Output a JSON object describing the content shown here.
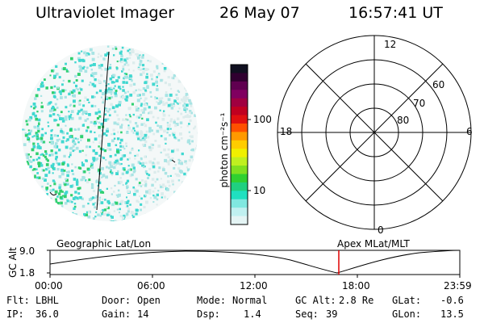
{
  "header": {
    "instrument": "Ultraviolet Imager",
    "date": "26 May 07",
    "time": "16:57:41 UT"
  },
  "colorbar": {
    "label": "photon cm⁻²s⁻¹",
    "ticks": [
      "100",
      "10"
    ],
    "colors": [
      "#101020",
      "#300030",
      "#600050",
      "#800060",
      "#a00040",
      "#c00020",
      "#e01010",
      "#ff5000",
      "#ff9900",
      "#ffcc00",
      "#f0f000",
      "#c0f020",
      "#80e020",
      "#30d030",
      "#20d080",
      "#20e0c0",
      "#80e8e0",
      "#c0f0f0",
      "#e4f4f4"
    ]
  },
  "polar": {
    "labels": {
      "top": "12",
      "left": "18",
      "right": "6",
      "bottom": "0"
    },
    "lat_labels": [
      "60",
      "70",
      "80"
    ]
  },
  "timeline": {
    "left_label": "Geographic Lat/Lon",
    "right_label": "Apex MLat/MLT",
    "axis_title": "GC Alt",
    "y_ticks": [
      "9.0",
      "1.8"
    ],
    "x_ticks": [
      "00:00",
      "06:00",
      "12:00",
      "18:00",
      "23:59"
    ],
    "current_marker_color": "#e00000"
  },
  "info": {
    "flt_label": "Flt:",
    "flt_value": "LBHL",
    "door_label": "Door:",
    "door_value": "Open",
    "mode_label": "Mode:",
    "mode_value": "Normal",
    "gcalt_label": "GC Alt:",
    "gcalt_value": "2.8 Re",
    "glat_label": "GLat:",
    "glat_value": "-0.6",
    "ip_label": "IP:",
    "ip_value": "36.0",
    "gain_label": "Gain:",
    "gain_value": "14",
    "dsp_label": "Dsp:",
    "dsp_value": "1.4",
    "seq_label": "Seq:",
    "seq_value": "39",
    "glon_label": "GLon:",
    "glon_value": "13.5"
  }
}
